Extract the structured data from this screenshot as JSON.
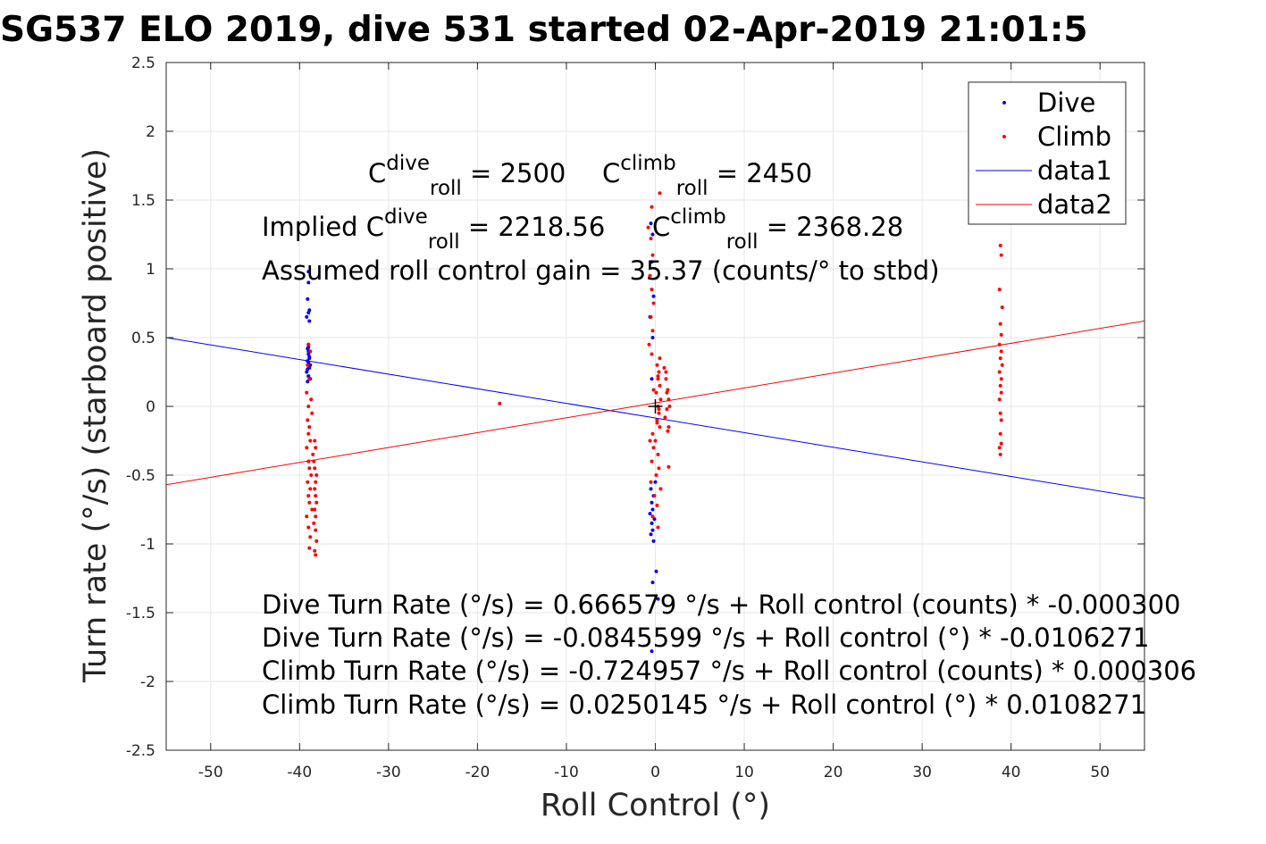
{
  "chart_data": {
    "type": "scatter",
    "title": "SG537 ELO 2019, dive 531 started 02-Apr-2019 21:01:5",
    "xlabel": "Roll Control (°)",
    "ylabel": "Turn rate (°/s) (starboard positive)",
    "xlim": [
      -55,
      55
    ],
    "ylim": [
      -2.5,
      2.5
    ],
    "xticks": [
      -50,
      -40,
      -30,
      -20,
      -10,
      0,
      10,
      20,
      30,
      40,
      50
    ],
    "yticks": [
      -2.5,
      -2,
      -1.5,
      -1,
      -0.5,
      0,
      0.5,
      1,
      1.5,
      2,
      2.5
    ],
    "xtick_labels": [
      "-50",
      "-40",
      "-30",
      "-20",
      "-10",
      "0",
      "10",
      "20",
      "30",
      "40",
      "50"
    ],
    "ytick_labels": [
      "-2.5",
      "-2",
      "-1.5",
      "-1",
      "-0.5",
      "0",
      "0.5",
      "1",
      "1.5",
      "2",
      "2.5"
    ],
    "grid": true,
    "legend_position": "top-right",
    "series": [
      {
        "name": "Dive",
        "kind": "scatter",
        "color": "#0000ff",
        "x": [
          -39.0,
          -39.0,
          -39.1,
          -38.9,
          -39.0,
          -39.2,
          -38.9,
          -39.0,
          -39.1,
          -38.8,
          -39.0,
          -38.9,
          -39.1,
          -39.0,
          -38.9,
          -39.2,
          -39.0,
          -38.8,
          -39.1,
          -39.0,
          -38.9,
          -39.0,
          -38.8,
          -39.1,
          -39.0,
          -0.5,
          -0.3,
          -0.4,
          -0.2,
          -0.6,
          -0.3,
          -0.4,
          0.0,
          -0.5,
          -0.2,
          -0.4,
          -0.3,
          -0.6,
          -0.1,
          -0.4,
          -0.3,
          -0.5,
          -0.2,
          0.1,
          -0.3,
          0.3,
          -0.4
        ],
        "y": [
          0.98,
          0.9,
          0.78,
          0.7,
          0.68,
          0.65,
          0.62,
          0.45,
          0.42,
          0.4,
          0.38,
          0.35,
          0.33,
          0.3,
          0.28,
          0.25,
          0.22,
          0.2,
          0.18,
          0.32,
          0.36,
          0.4,
          0.3,
          0.27,
          0.43,
          1.33,
          1.25,
          1.05,
          0.8,
          0.65,
          0.5,
          0.2,
          -0.55,
          -0.6,
          -0.65,
          -0.7,
          -0.75,
          -0.78,
          -0.82,
          -0.85,
          -0.9,
          -0.93,
          -0.98,
          -1.2,
          -1.28,
          -1.4,
          -1.78
        ]
      },
      {
        "name": "Climb",
        "kind": "scatter",
        "color": "#ff0000",
        "x": [
          -39.0,
          -38.8,
          -39.1,
          -38.9,
          -39.2,
          -38.7,
          -39.0,
          -38.6,
          -39.1,
          -38.9,
          -39.0,
          -38.8,
          -39.2,
          -38.5,
          -39.0,
          -38.9,
          -38.7,
          -39.1,
          -38.8,
          -39.0,
          -38.9,
          -38.6,
          -39.2,
          -39.0,
          -38.8,
          -38.9,
          -38.3,
          -38.2,
          -38.4,
          -38.3,
          -38.1,
          -38.2,
          -38.3,
          -38.2,
          -38.1,
          -38.3,
          -38.2,
          -38.4,
          -38.2,
          -38.1,
          -38.3,
          -38.2,
          -17.5,
          -0.8,
          -0.5,
          -0.3,
          -0.6,
          -0.4,
          -0.2,
          -0.5,
          -0.3,
          -0.7,
          -0.4,
          0.2,
          0.4,
          0.3,
          0.5,
          0.1,
          0.6,
          0.3,
          0.4,
          0.2,
          0.5,
          -0.3,
          -0.6,
          -0.2,
          0.3,
          -0.4,
          0.4,
          0.1,
          -0.5,
          0.6,
          -0.1,
          0.2,
          -0.3,
          0.5,
          0.3,
          -0.2,
          0.4,
          0.2,
          0.0,
          0.5,
          -0.4,
          0.3,
          1.0,
          1.2,
          1.4,
          1.5,
          1.3,
          1.1,
          1.5,
          1.4,
          1.2,
          1.3,
          1.6,
          1.5,
          38.8,
          38.9,
          38.7,
          39.0,
          38.8,
          38.9,
          38.7,
          38.9,
          38.8,
          39.0,
          38.7,
          38.9,
          38.8,
          38.9,
          38.7,
          38.8,
          38.9,
          38.8,
          38.9,
          38.7,
          38.8
        ],
        "y": [
          0.45,
          0.4,
          0.3,
          0.2,
          0.1,
          0.05,
          0.0,
          -0.05,
          -0.1,
          -0.15,
          -0.2,
          -0.25,
          -0.3,
          -0.35,
          -0.4,
          -0.45,
          -0.5,
          -0.55,
          -0.6,
          -0.65,
          -0.7,
          -0.75,
          -0.8,
          -0.88,
          -0.95,
          -1.03,
          -0.25,
          -0.3,
          -0.4,
          -0.45,
          -0.5,
          -0.55,
          -0.6,
          -0.65,
          -0.7,
          -0.75,
          -0.8,
          -0.85,
          -0.9,
          -0.98,
          -1.05,
          -1.08,
          0.02,
          1.3,
          1.22,
          1.1,
          0.95,
          0.85,
          0.75,
          0.65,
          0.55,
          0.45,
          0.38,
          0.3,
          0.25,
          0.2,
          0.15,
          0.1,
          0.05,
          0.0,
          -0.05,
          -0.1,
          -0.15,
          -0.2,
          -0.25,
          -0.3,
          -0.35,
          -0.4,
          -0.45,
          -0.5,
          -0.55,
          -0.6,
          -0.65,
          -0.72,
          -0.8,
          0.35,
          0.22,
          0.12,
          -0.02,
          -0.12,
          -0.25,
          1.55,
          1.45,
          -0.88,
          0.28,
          0.2,
          0.12,
          0.05,
          -0.02,
          -0.08,
          -0.15,
          -0.18,
          0.25,
          0.1,
          0.0,
          -0.44,
          1.17,
          1.1,
          0.85,
          0.72,
          0.6,
          0.52,
          0.45,
          0.4,
          0.35,
          0.3,
          0.25,
          0.2,
          0.15,
          0.1,
          0.05,
          -0.05,
          -0.1,
          -0.2,
          -0.27,
          -0.3,
          -0.35
        ]
      },
      {
        "name": "data1",
        "kind": "line",
        "color": "#0000ff",
        "x": [
          -55,
          55
        ],
        "y": [
          0.5,
          -0.669
        ]
      },
      {
        "name": "data2",
        "kind": "line",
        "color": "#ff0000",
        "x": [
          -55,
          55
        ],
        "y": [
          -0.57,
          0.621
        ]
      }
    ],
    "marker": {
      "x": 0,
      "y": 0,
      "symbol": "+",
      "color": "#000000"
    },
    "annotations": {
      "c_dive": {
        "pre": "",
        "base": "C",
        "sup": "dive",
        "sub": "roll",
        "post": " = 2500"
      },
      "c_climb": {
        "pre": "",
        "base": "C",
        "sup": "climb",
        "sub": "roll",
        "post": " = 2450"
      },
      "implied_dive": {
        "pre": "Implied ",
        "base": "C",
        "sup": "dive",
        "sub": "roll",
        "post": " = 2218.56"
      },
      "implied_climb": {
        "pre": "",
        "base": "C",
        "sup": "climb",
        "sub": "roll",
        "post": " = 2368.28"
      },
      "gain": "Assumed roll control gain = 35.37 (counts/° to stbd)",
      "eq1": "Dive Turn Rate (°/s) = 0.666579 °/s + Roll control (counts) * -0.000300",
      "eq2": "Dive Turn Rate (°/s) = -0.0845599 °/s + Roll control (°) * -0.0106271",
      "eq3": "Climb Turn Rate (°/s) = -0.724957 °/s + Roll control (counts) * 0.000306",
      "eq4": "Climb Turn Rate (°/s) = 0.0250145 °/s + Roll control (°) * 0.0108271"
    }
  }
}
